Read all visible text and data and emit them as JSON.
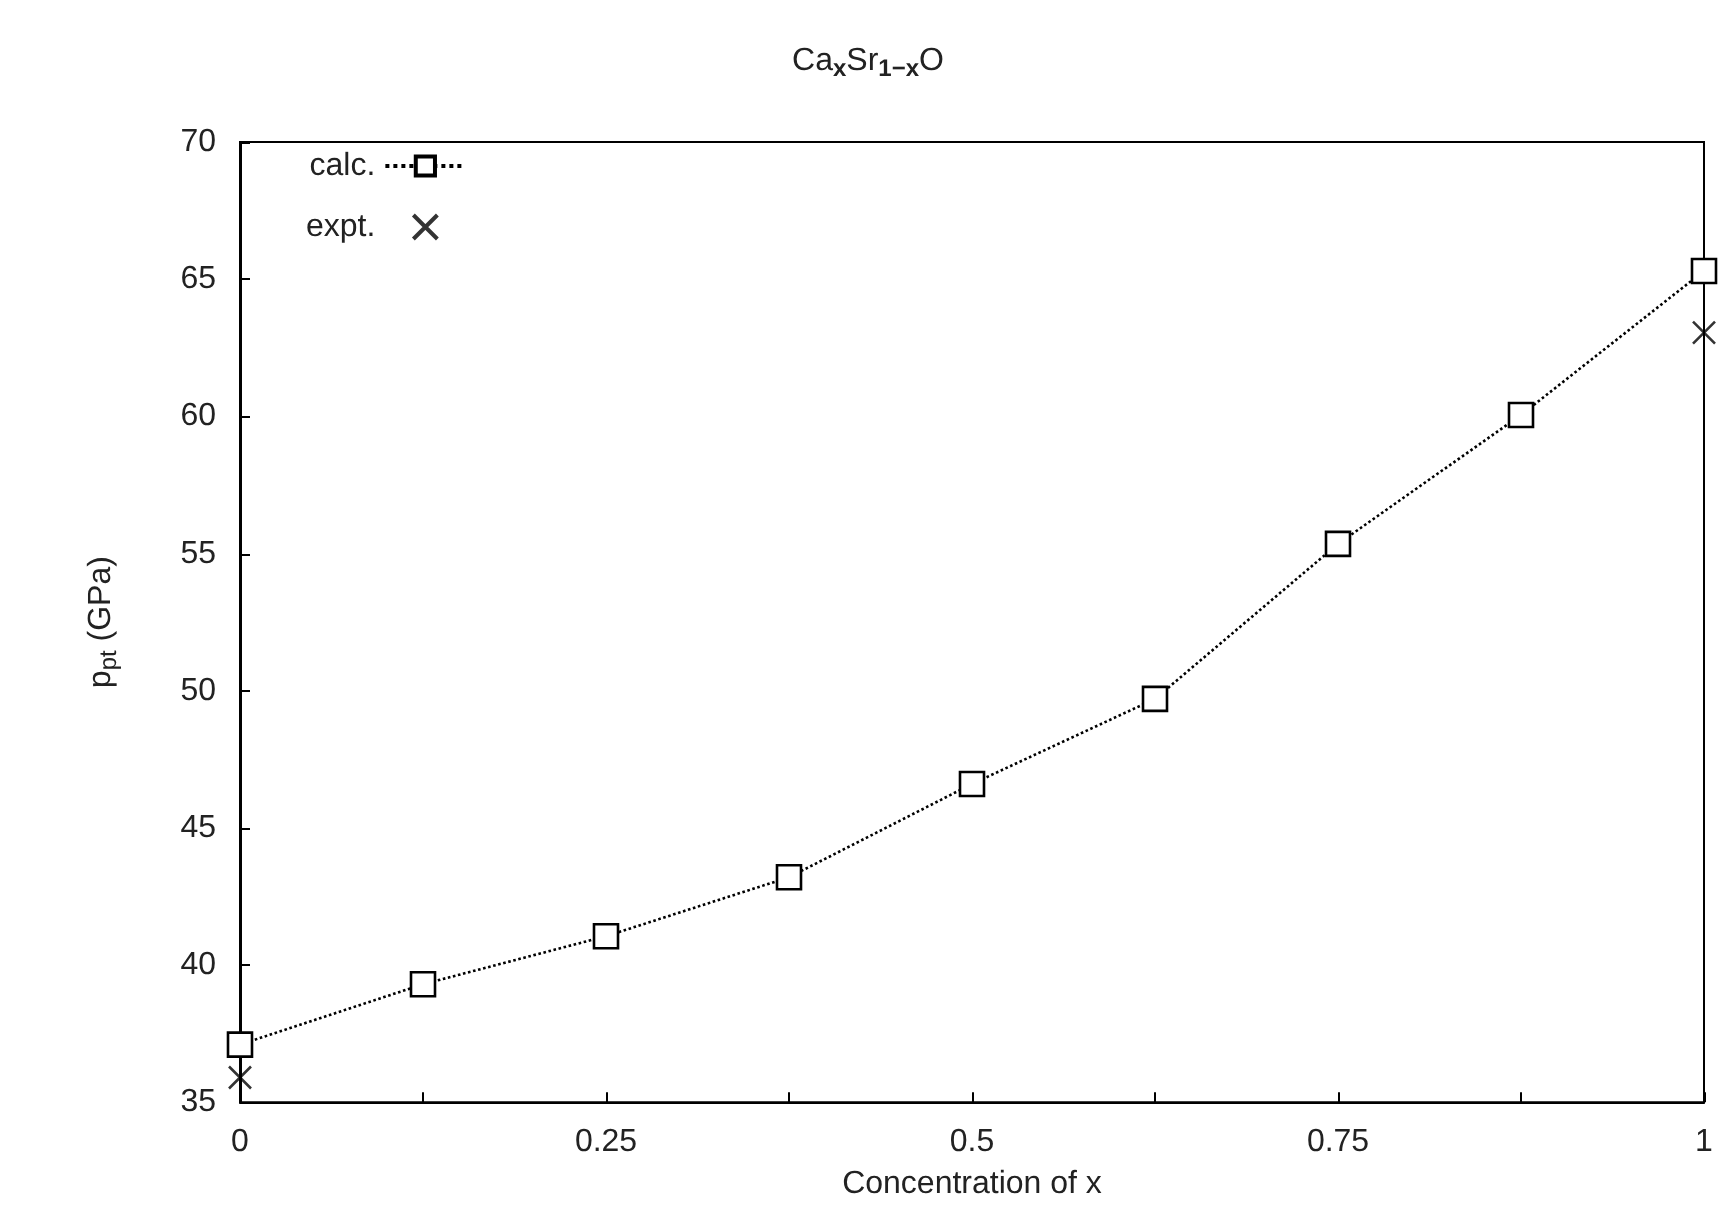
{
  "chart_data": {
    "type": "line",
    "title": "Ca$_{x}$Sr$_{1−x}$O",
    "xlabel": "Concentration of x",
    "ylabel": "p$_{pt}$ (GPa)",
    "xlim": [
      0,
      1
    ],
    "xticks": [
      0,
      {
        "value": 0.125,
        "label": null
      },
      0.25,
      {
        "value": 0.375,
        "label": null
      },
      0.5,
      {
        "value": 0.625,
        "label": null
      },
      0.75,
      {
        "value": 0.875,
        "label": null
      },
      1
    ],
    "ylim": [
      35,
      70
    ],
    "yticks": [
      35,
      40,
      45,
      50,
      55,
      60,
      65,
      70
    ],
    "grid": false,
    "legend": "top left",
    "series": [
      {
        "name": "calc.",
        "color": "#000000",
        "marker": "square",
        "line_style": "dotted",
        "x": [
          0,
          0.125,
          0.25,
          0.375,
          0.5,
          0.625,
          0.75,
          0.875,
          1
        ],
        "values": [
          37.1,
          39.3,
          41.05,
          43.2,
          46.6,
          49.7,
          55.35,
          60.05,
          65.3
        ]
      },
      {
        "name": "expt.",
        "type": "scatter",
        "color": "#000000",
        "marker": "cross",
        "x": [
          0,
          1
        ],
        "values": [
          35.9,
          63.05
        ]
      }
    ]
  }
}
